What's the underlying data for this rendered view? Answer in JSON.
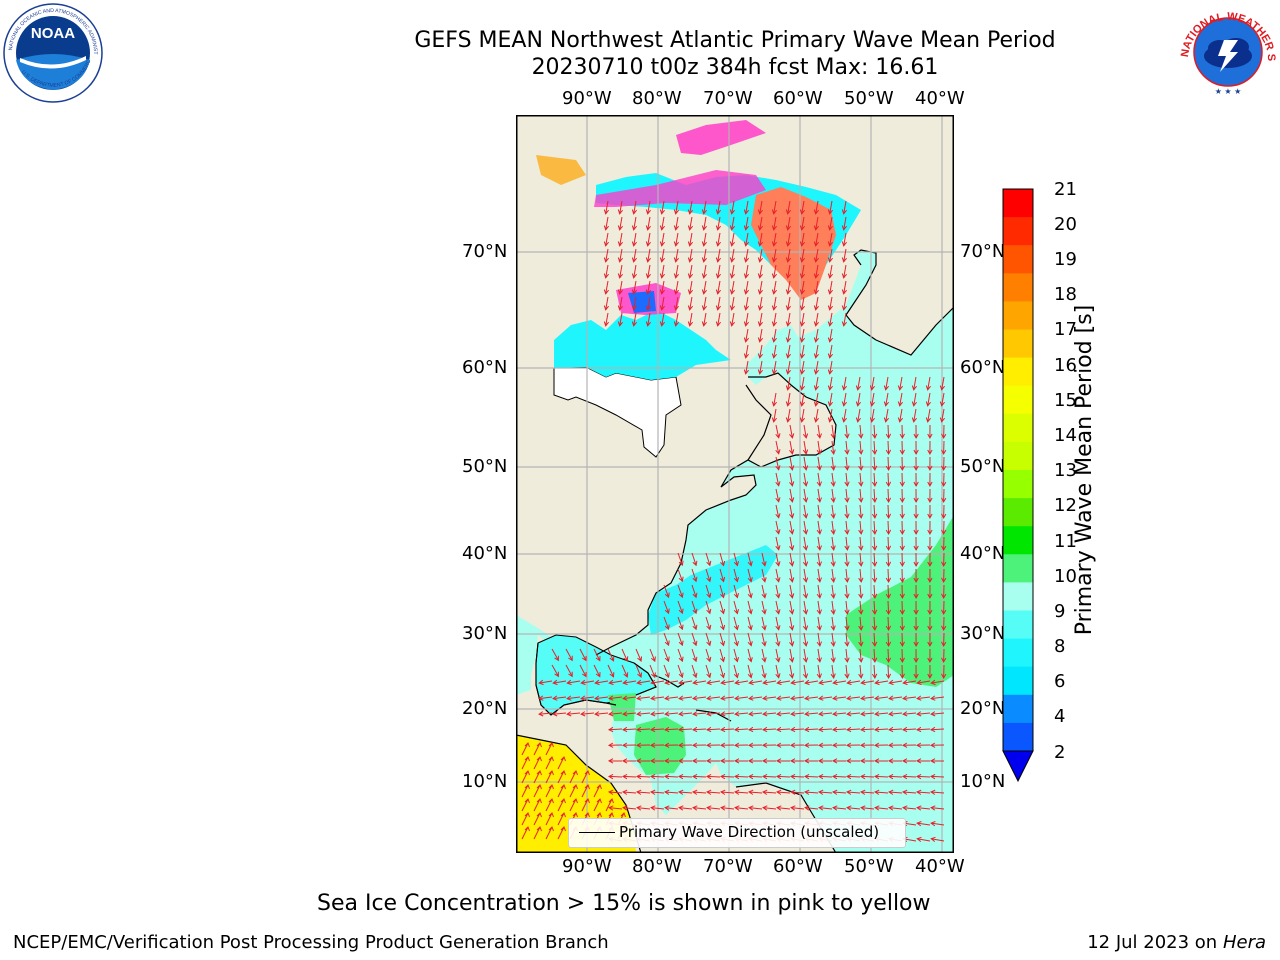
{
  "title": {
    "line1": "GEFS MEAN Northwest Atlantic Primary Wave Mean Period",
    "line2": "20230710 t00z 384h fcst   Max: 16.61"
  },
  "axes": {
    "lon_ticks": [
      "90°W",
      "80°W",
      "70°W",
      "60°W",
      "50°W",
      "40°W"
    ],
    "lat_ticks": [
      "70°N",
      "60°N",
      "50°N",
      "40°N",
      "30°N",
      "20°N",
      "10°N"
    ]
  },
  "colorbar": {
    "label": "Primary Wave Mean Period [s]",
    "ticks": [
      "21",
      "20",
      "19",
      "18",
      "17",
      "16",
      "15",
      "14",
      "13",
      "12",
      "11",
      "10",
      "9",
      "8",
      "6",
      "4",
      "2"
    ],
    "colors": [
      "#ff0000",
      "#ff2a00",
      "#ff5500",
      "#ff7f00",
      "#ffa500",
      "#ffc800",
      "#ffee00",
      "#f5ff00",
      "#dcff00",
      "#c8ff00",
      "#96ff00",
      "#5aeb00",
      "#00e600",
      "#4df27a",
      "#a8fff0",
      "#56fcf6",
      "#1ff5fd",
      "#00e6ff",
      "#0a8bff",
      "#0a57ff",
      "#0000ee"
    ]
  },
  "legend": {
    "label": "Primary Wave Direction (unscaled)"
  },
  "caption": "Sea Ice Concentration > 15% is shown in pink to yellow",
  "footer": {
    "left": "NCEP/EMC/Verification Post Processing Product Generation Branch",
    "right_date": "12 Jul 2023 on ",
    "right_machine": "Hera"
  },
  "logos": {
    "noaa": {
      "text": "NOAA",
      "ring_top": "NATIONAL OCEANIC AND ATMOSPHERIC ADMINISTRATION",
      "ring_bottom": "U.S. DEPARTMENT OF COMMERCE"
    },
    "nws": {
      "ring": "NATIONAL WEATHER SERVICE"
    }
  },
  "colors": {
    "land": "#efecdc",
    "ocean_wave": "#a8fff0",
    "ocean_cyan": "#1ff5fd",
    "green": "#4df27a",
    "yellow": "#ffee00",
    "ice_pink": "#ff3dc8",
    "ice_orange": "#ff7f5a",
    "arrow": "#e8202a",
    "grid": "#b4b4b4"
  }
}
